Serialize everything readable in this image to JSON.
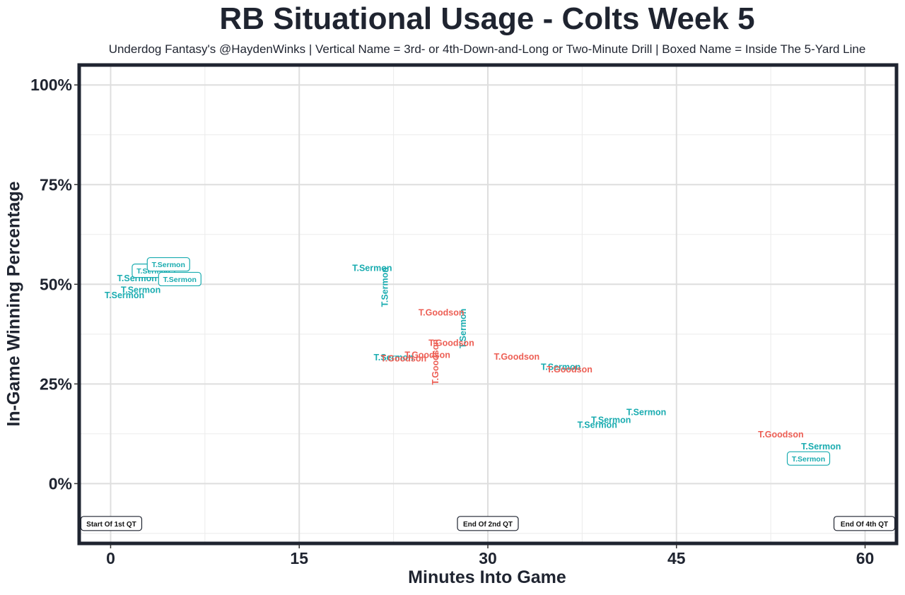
{
  "chart_data": {
    "type": "scatter",
    "title": "RB Situational Usage - Colts Week 5",
    "subtitle": "Underdog Fantasy's @HaydenWinks | Vertical Name = 3rd- or 4th-Down-and-Long or Two-Minute Drill | Boxed Name = Inside The 5-Yard Line",
    "xlabel": "Minutes Into Game",
    "ylabel": "In-Game Winning Percentage",
    "xlim": [
      -2.5,
      62.5
    ],
    "ylim": [
      -15,
      105
    ],
    "x_ticks": [
      {
        "value": 0,
        "label": "0"
      },
      {
        "value": 15,
        "label": "15"
      },
      {
        "value": 30,
        "label": "30"
      },
      {
        "value": 45,
        "label": "45"
      },
      {
        "value": 60,
        "label": "60"
      }
    ],
    "y_ticks": [
      {
        "value": 0,
        "label": "0%"
      },
      {
        "value": 25,
        "label": "25%"
      },
      {
        "value": 50,
        "label": "50%"
      },
      {
        "value": 75,
        "label": "75%"
      },
      {
        "value": 100,
        "label": "100%"
      }
    ],
    "grid": true,
    "colors": {
      "T.Sermon": "#1aacb0",
      "T.Goodson": "#ed5f55"
    },
    "points": [
      {
        "player": "T.Sermon",
        "x": 1.1,
        "y": 47.3,
        "style": "normal"
      },
      {
        "player": "T.Sermon",
        "x": 2.4,
        "y": 48.6,
        "style": "normal"
      },
      {
        "player": "T.Sermon",
        "x": 2.1,
        "y": 51.6,
        "style": "normal"
      },
      {
        "player": "T.Sermon",
        "x": 3.4,
        "y": 53.4,
        "style": "boxed"
      },
      {
        "player": "T.Sermon",
        "x": 4.6,
        "y": 55.0,
        "style": "boxed"
      },
      {
        "player": "T.Sermon",
        "x": 5.5,
        "y": 51.3,
        "style": "boxed"
      },
      {
        "player": "T.Sermon",
        "x": 20.8,
        "y": 54.1,
        "style": "normal"
      },
      {
        "player": "T.Sermon",
        "x": 21.8,
        "y": 49.3,
        "style": "vertical"
      },
      {
        "player": "T.Sermon",
        "x": 28.0,
        "y": 38.9,
        "style": "vertical"
      },
      {
        "player": "T.Goodson",
        "x": 26.3,
        "y": 43.0,
        "style": "normal"
      },
      {
        "player": "T.Goodson",
        "x": 27.1,
        "y": 35.3,
        "style": "normal"
      },
      {
        "player": "T.Goodson",
        "x": 25.8,
        "y": 30.5,
        "style": "vertical"
      },
      {
        "player": "T.Goodson",
        "x": 25.2,
        "y": 32.3,
        "style": "normal"
      },
      {
        "player": "T.Sermon",
        "x": 22.5,
        "y": 31.7,
        "style": "normal"
      },
      {
        "player": "T.Goodson",
        "x": 23.3,
        "y": 31.4,
        "style": "normal"
      },
      {
        "player": "T.Goodson",
        "x": 32.3,
        "y": 31.9,
        "style": "normal"
      },
      {
        "player": "T.Sermon",
        "x": 35.8,
        "y": 29.3,
        "style": "normal"
      },
      {
        "player": "T.Goodson",
        "x": 36.5,
        "y": 28.7,
        "style": "normal"
      },
      {
        "player": "T.Sermon",
        "x": 42.6,
        "y": 18.0,
        "style": "normal"
      },
      {
        "player": "T.Sermon",
        "x": 39.8,
        "y": 16.0,
        "style": "normal"
      },
      {
        "player": "T.Sermon",
        "x": 38.7,
        "y": 14.8,
        "style": "normal"
      },
      {
        "player": "T.Goodson",
        "x": 53.3,
        "y": 12.4,
        "style": "normal"
      },
      {
        "player": "T.Sermon",
        "x": 56.5,
        "y": 9.4,
        "style": "normal"
      },
      {
        "player": "T.Sermon",
        "x": 55.5,
        "y": 6.3,
        "style": "boxed"
      }
    ],
    "annotations": [
      {
        "text": "Start Of 1st QT",
        "x": 0,
        "y": -10,
        "anchor": "start"
      },
      {
        "text": "End Of 2nd QT",
        "x": 30,
        "y": -10,
        "anchor": "middle"
      },
      {
        "text": "End Of 4th QT",
        "x": 60,
        "y": -10,
        "anchor": "end"
      }
    ]
  }
}
